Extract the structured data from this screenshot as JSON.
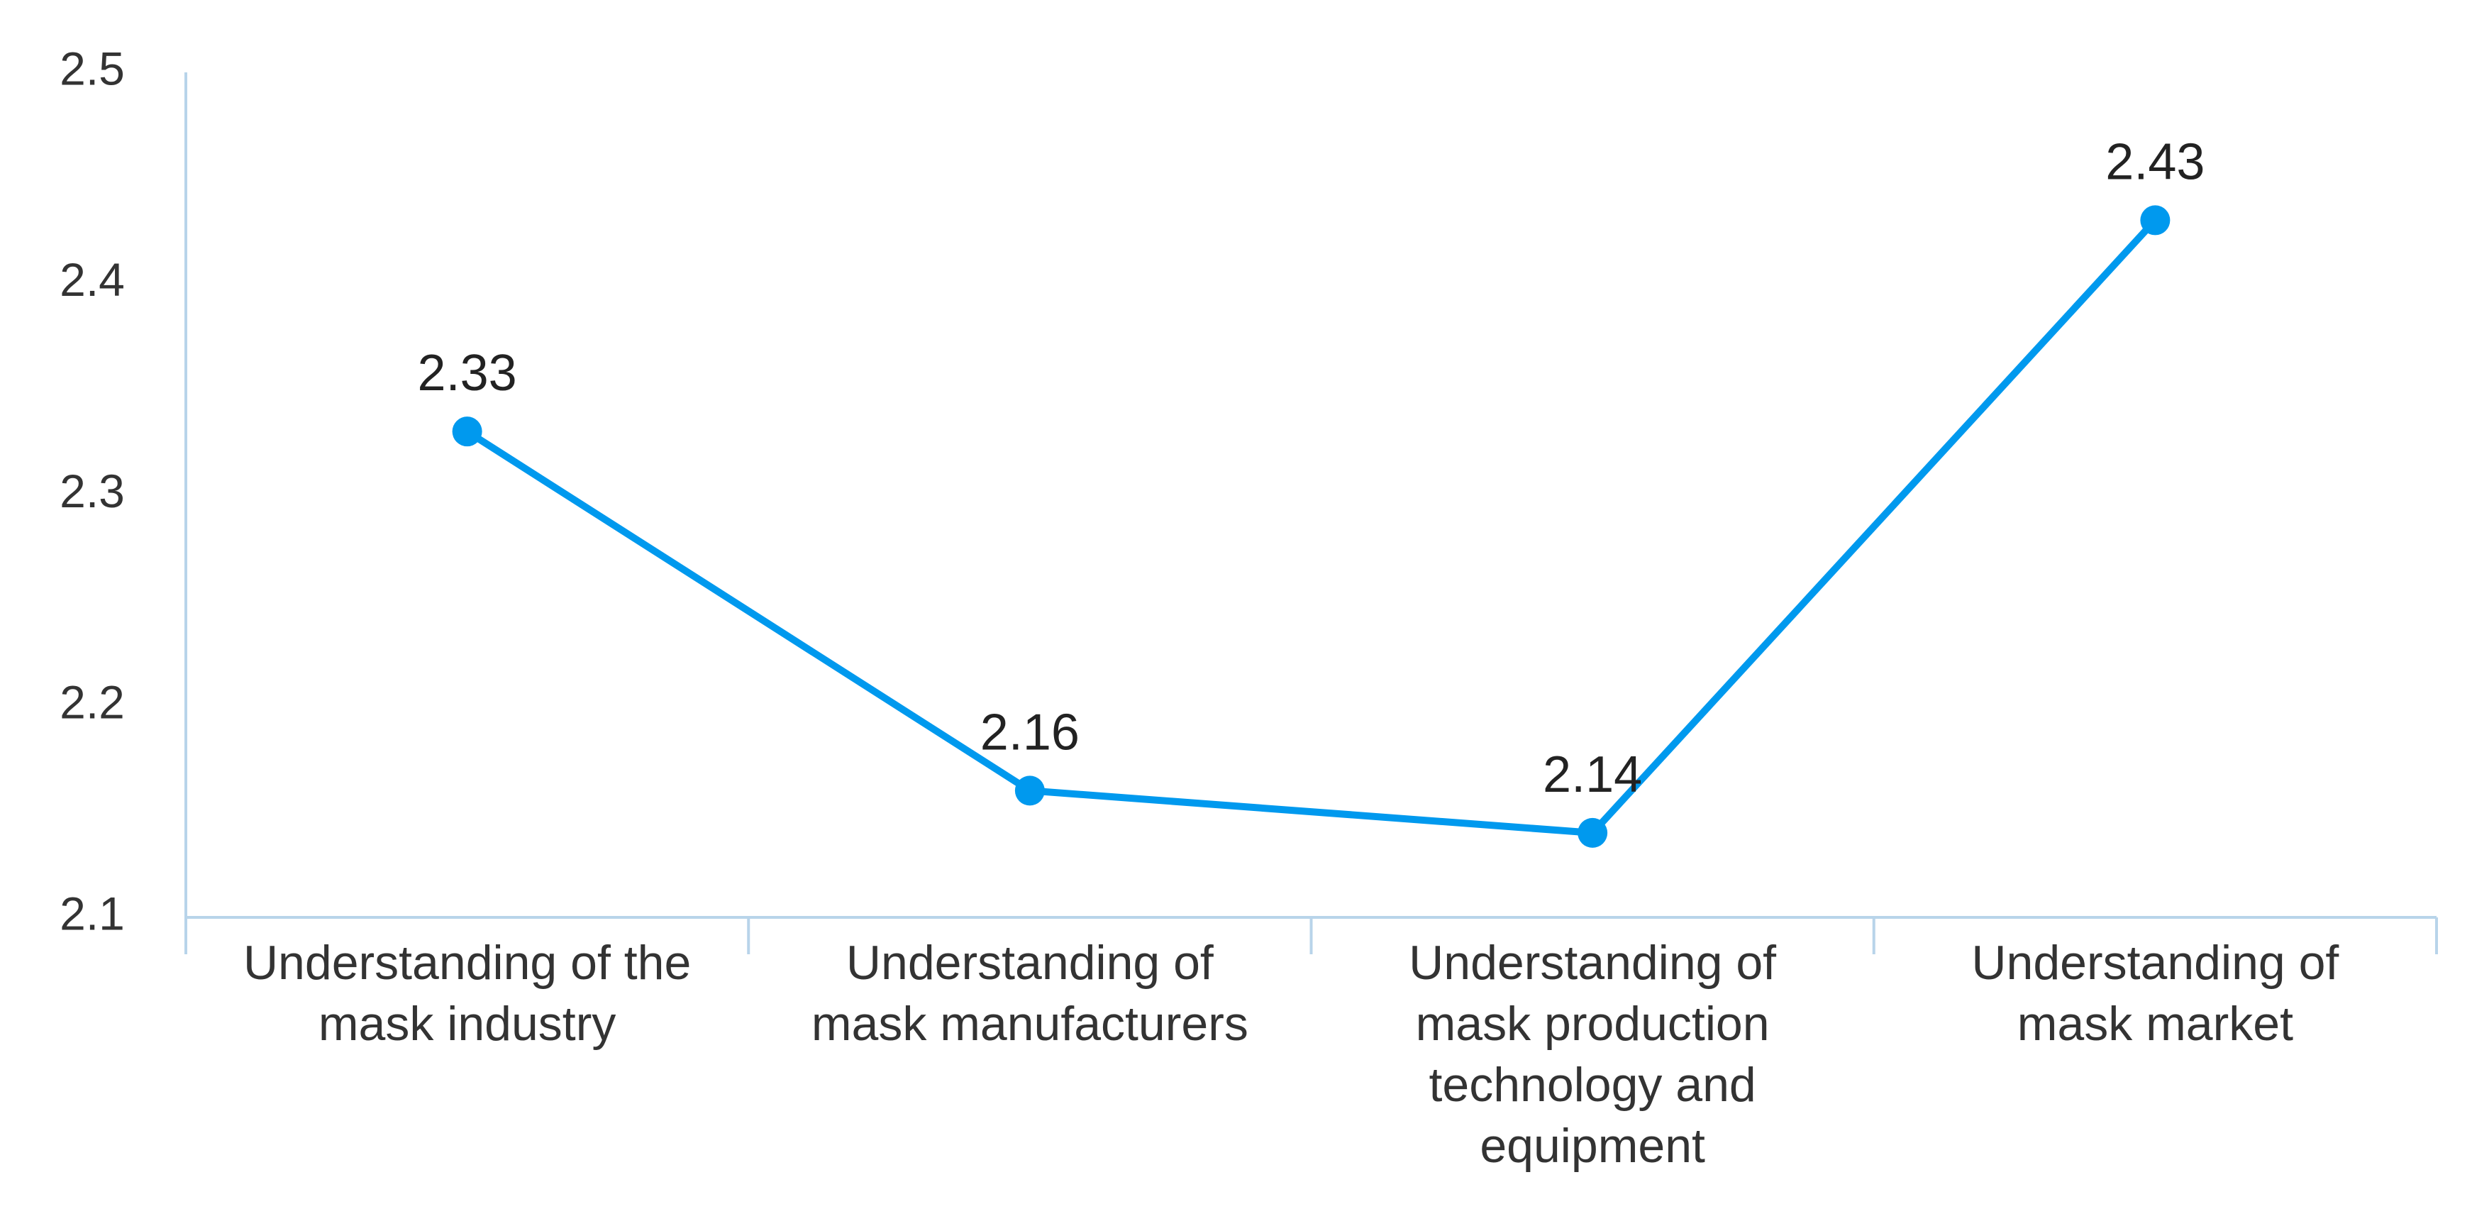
{
  "chart_data": {
    "type": "line",
    "title": "",
    "xlabel": "",
    "ylabel": "",
    "categories": [
      [
        "Understanding of the",
        "mask industry"
      ],
      [
        "Understanding of",
        "mask manufacturers"
      ],
      [
        "Understanding of",
        "mask production",
        "technology and",
        "equipment"
      ],
      [
        "Understanding of",
        "mask market"
      ]
    ],
    "series": [
      {
        "values": [
          2.33,
          2.16,
          2.14,
          2.43
        ],
        "value_labels": [
          "2.33",
          "2.16",
          "2.14",
          "2.43"
        ],
        "color": "#0099ee"
      }
    ],
    "ylim": [
      2.1,
      2.5
    ],
    "y_ticks": [
      "2.1",
      "2.2",
      "2.3",
      "2.4",
      "2.5"
    ],
    "grid": false,
    "legend": "none",
    "axis_color": "#b8d4ea"
  }
}
